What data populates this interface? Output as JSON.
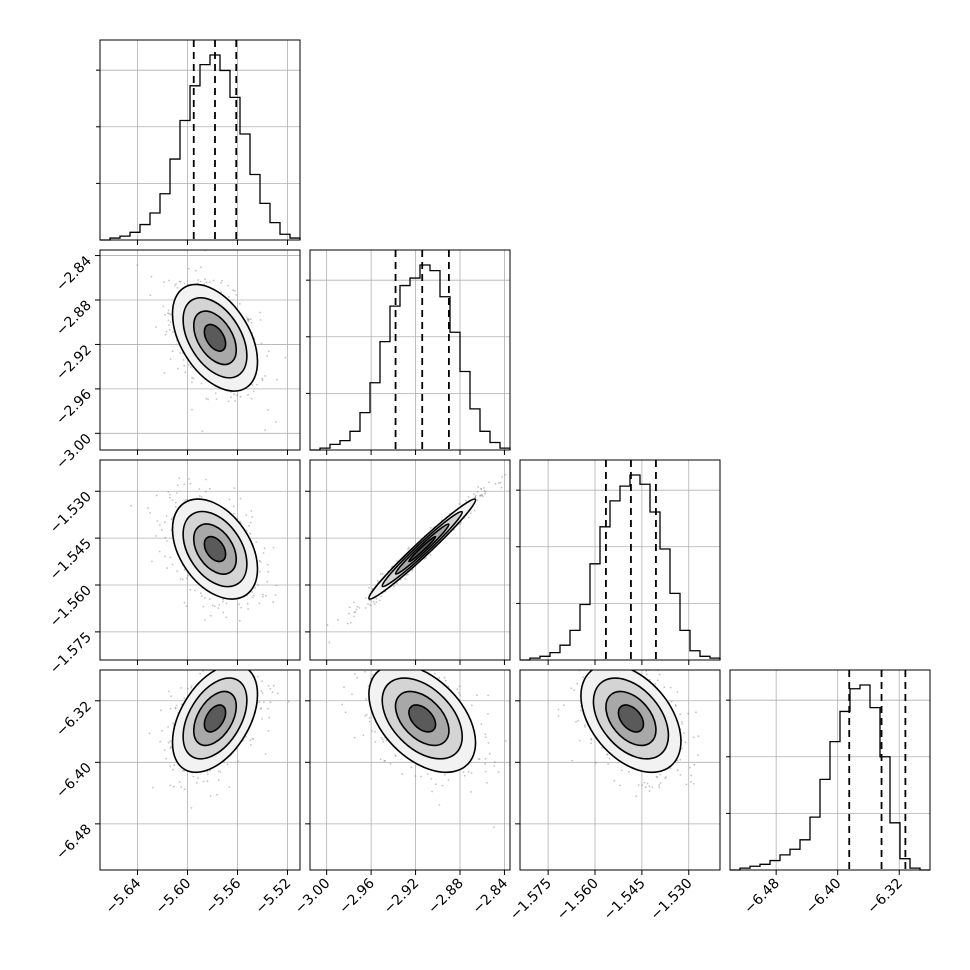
{
  "chart_data": {
    "type": "corner",
    "grid": true,
    "parameters": [
      {
        "range": [
          -5.67,
          -5.51
        ],
        "ticks": [
          -5.64,
          -5.6,
          -5.56,
          -5.52
        ],
        "tick_labels": [
          "−5.64",
          "−5.60",
          "−5.56",
          "−5.52"
        ],
        "quantiles": [
          -5.595,
          -5.578,
          -5.561
        ],
        "median": -5.578,
        "sigma": 0.017
      },
      {
        "range": [
          -3.015,
          -2.835
        ],
        "ticks": [
          -3.0,
          -2.96,
          -2.92,
          -2.88,
          -2.84
        ],
        "tick_labels": [
          "−3.00",
          "−2.96",
          "−2.92",
          "−2.88",
          "−2.84"
        ],
        "quantiles": [
          -2.938,
          -2.914,
          -2.89
        ],
        "median": -2.914,
        "sigma": 0.024
      },
      {
        "range": [
          -1.584,
          -1.52
        ],
        "ticks": [
          -1.575,
          -1.56,
          -1.545,
          -1.53
        ],
        "tick_labels": [
          "−1.575",
          "−1.560",
          "−1.545",
          "−1.530"
        ],
        "quantiles": [
          -1.5565,
          -1.5485,
          -1.5405
        ],
        "median": -1.5485,
        "sigma": 0.008
      },
      {
        "range": [
          -6.54,
          -6.28
        ],
        "ticks": [
          -6.48,
          -6.4,
          -6.32
        ],
        "tick_labels": [
          "−6.48",
          "−6.40",
          "−6.32"
        ],
        "quantiles": [
          -6.385,
          -6.343,
          -6.312
        ],
        "median": -6.343,
        "sigma": 0.035
      }
    ],
    "histograms": [
      {
        "counts": [
          0,
          1,
          2,
          4,
          8,
          14,
          24,
          42,
          62,
          80,
          91,
          96,
          88,
          74,
          55,
          34,
          19,
          9,
          3,
          1
        ]
      },
      {
        "counts": [
          0,
          1,
          3,
          5,
          10,
          20,
          36,
          58,
          77,
          88,
          92,
          99,
          96,
          82,
          63,
          42,
          22,
          10,
          4,
          1
        ]
      },
      {
        "counts": [
          0,
          1,
          2,
          4,
          8,
          16,
          30,
          52,
          72,
          86,
          94,
          100,
          95,
          80,
          60,
          36,
          16,
          5,
          2,
          1
        ]
      },
      {
        "counts": [
          0,
          1,
          2,
          3,
          5,
          8,
          11,
          16,
          28,
          48,
          68,
          84,
          96,
          98,
          86,
          60,
          25,
          6,
          1,
          0
        ]
      }
    ],
    "correlations": [
      {
        "x": 0,
        "y": 1,
        "rho": -0.45
      },
      {
        "x": 0,
        "y": 2,
        "rho": -0.4
      },
      {
        "x": 1,
        "y": 2,
        "rho": 0.98
      },
      {
        "x": 0,
        "y": 3,
        "rho": 0.45
      },
      {
        "x": 1,
        "y": 3,
        "rho": -0.45
      },
      {
        "x": 2,
        "y": 3,
        "rho": -0.42
      }
    ]
  }
}
